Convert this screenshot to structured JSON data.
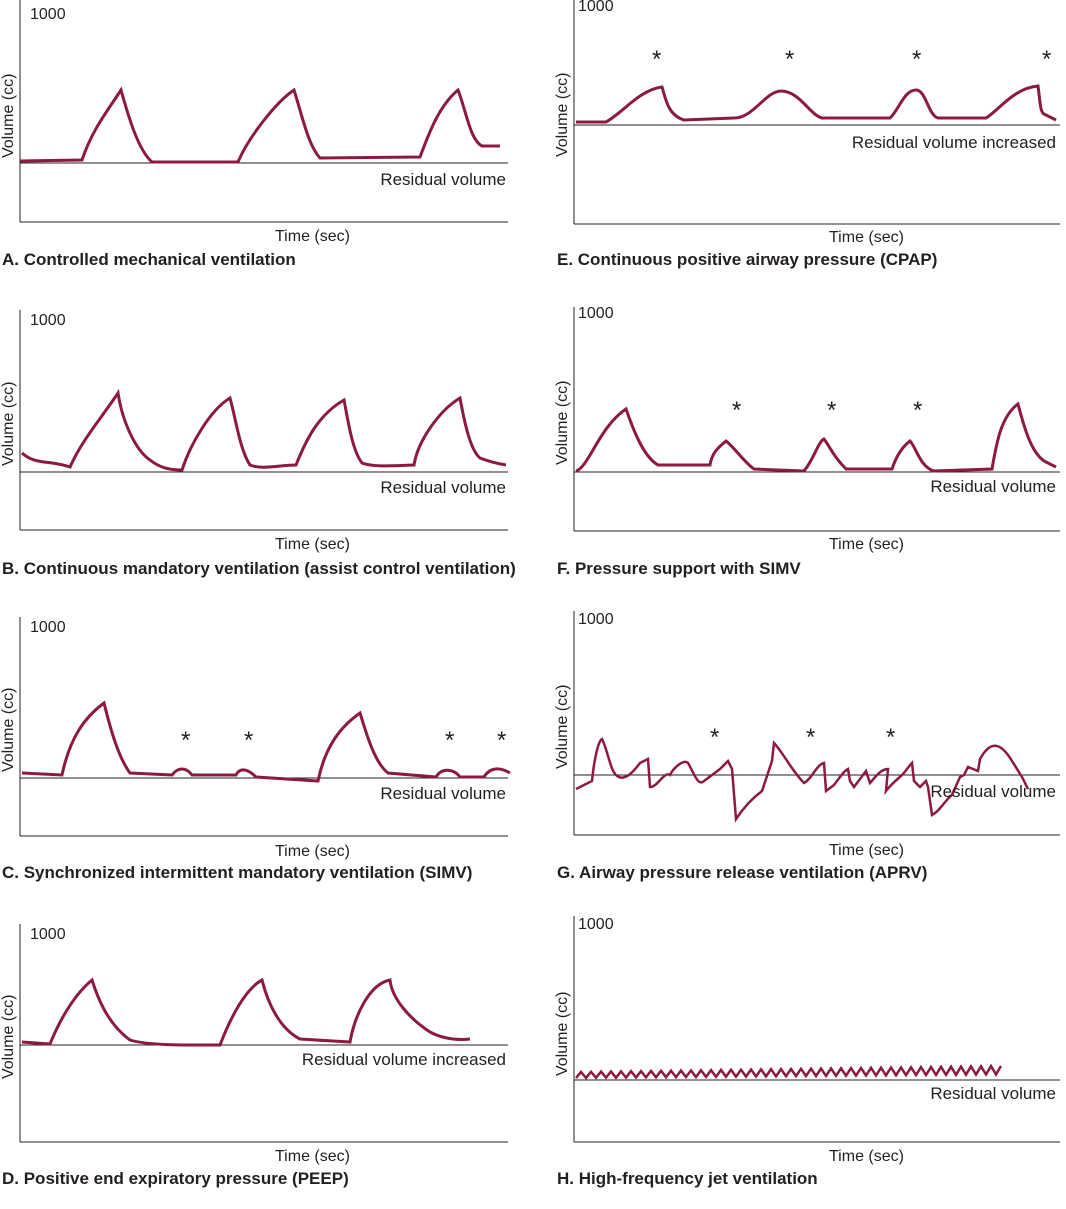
{
  "ymax_label": "1000",
  "ylabel": "Volume (cc)",
  "xlabel": "Time (sec)",
  "wave_color": "#8b1a3e",
  "panels": [
    {
      "id": "A",
      "ymax": "1000",
      "ylabel": "Volume (cc)",
      "xlabel": "Time (sec)",
      "baseline_label": "Residual volume",
      "caption": "A. Controlled mechanical ventilation"
    },
    {
      "id": "B",
      "ymax": "1000",
      "ylabel": "Volume (cc)",
      "xlabel": "Time (sec)",
      "baseline_label": "Residual volume",
      "caption": "B. Continuous mandatory ventilation (assist control ventilation)"
    },
    {
      "id": "C",
      "ymax": "1000",
      "ylabel": "Volume (cc)",
      "xlabel": "Time (sec)",
      "baseline_label": "Residual volume",
      "caption": "C. Synchronized intermittent mandatory ventilation (SIMV)"
    },
    {
      "id": "D",
      "ymax": "1000",
      "ylabel": "Volume (cc)",
      "xlabel": "Time (sec)",
      "baseline_label": "Residual volume increased",
      "caption": "D. Positive end expiratory pressure (PEEP)"
    },
    {
      "id": "E",
      "ymax": "1000",
      "ylabel": "Volume (cc)",
      "xlabel": "Time (sec)",
      "baseline_label": "Residual volume increased",
      "caption": "E. Continuous positive airway pressure (CPAP)"
    },
    {
      "id": "F",
      "ymax": "1000",
      "ylabel": "Volume (cc)",
      "xlabel": "Time (sec)",
      "baseline_label": "Residual volume",
      "caption": "F. Pressure support with SIMV"
    },
    {
      "id": "G",
      "ymax": "1000",
      "ylabel": "Volume (cc)",
      "xlabel": "Time (sec)",
      "baseline_label": "Residual volume",
      "caption": "G. Airway pressure release ventilation (APRV)"
    },
    {
      "id": "H",
      "ymax": "1000",
      "ylabel": "Volume (cc)",
      "xlabel": "Time (sec)",
      "baseline_label": "Residual volume",
      "caption": "H. High-frequency jet ventilation"
    }
  ],
  "spontaneous_breath_marker": "*"
}
